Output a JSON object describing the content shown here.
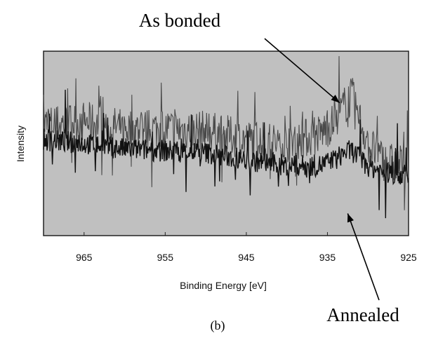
{
  "chart_data": {
    "type": "line",
    "panel_label": "(b)",
    "xlabel": "Binding Energy [eV]",
    "ylabel": "Intensity",
    "xlim": [
      970,
      925
    ],
    "x_reversed": true,
    "ylim": [
      0,
      1
    ],
    "x_ticks": [
      "965",
      "955",
      "945",
      "935",
      "925"
    ],
    "x_tick_values": [
      965,
      955,
      945,
      935,
      925
    ],
    "y_ticks_shown": false,
    "background_color": "#c0c0c0",
    "series": [
      {
        "color": "#4a4a4a",
        "x": [
          970,
          965,
          960,
          955,
          950,
          945,
          940,
          936,
          934,
          933,
          932,
          930,
          928,
          925
        ],
        "y": [
          0.6,
          0.62,
          0.58,
          0.58,
          0.57,
          0.52,
          0.5,
          0.55,
          0.62,
          0.7,
          0.76,
          0.5,
          0.4,
          0.38
        ]
      },
      {
        "color": "#111111",
        "x": [
          970,
          965,
          960,
          955,
          950,
          945,
          940,
          936,
          934,
          933,
          932,
          930,
          928,
          925
        ],
        "y": [
          0.52,
          0.5,
          0.47,
          0.46,
          0.45,
          0.41,
          0.38,
          0.38,
          0.41,
          0.45,
          0.46,
          0.38,
          0.34,
          0.33
        ]
      }
    ],
    "annotations": [
      {
        "text": "As bonded",
        "target_x": 933.5,
        "target_y": 0.72
      },
      {
        "text": "Annealed",
        "target_x": 932.5,
        "target_y": 0.12
      }
    ]
  }
}
